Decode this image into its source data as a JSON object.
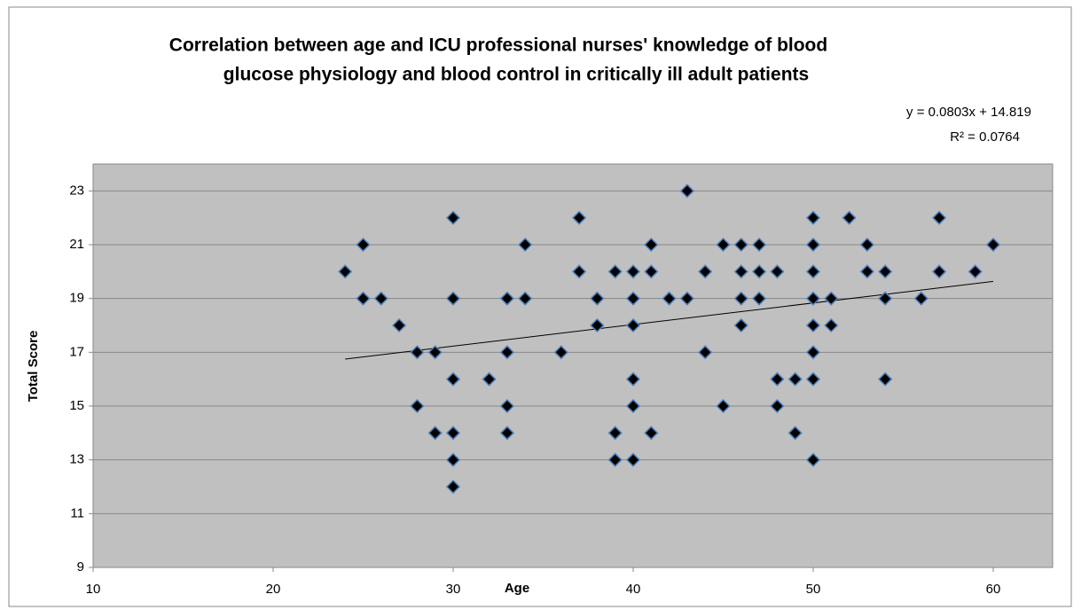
{
  "chart_data": {
    "type": "scatter",
    "title": [
      "Correlation between age and ICU professional nurses' knowledge of blood",
      "glucose  physiology and blood control in critically ill adult patients"
    ],
    "x_label": "Age",
    "y_label": "Total Score",
    "color": "#000000",
    "edge_color": "#4a7ebb",
    "grid": true,
    "xlim": [
      10,
      63.3
    ],
    "ylim": [
      9,
      24
    ],
    "xticks": [
      10,
      20,
      30,
      40,
      50,
      60
    ],
    "yticks": [
      9,
      11,
      13,
      15,
      17,
      19,
      21,
      23
    ],
    "x": [
      24,
      25,
      25,
      26,
      27,
      28,
      28,
      29,
      29,
      30,
      30,
      30,
      30,
      30,
      30,
      32,
      33,
      33,
      33,
      33,
      34,
      34,
      36,
      37,
      37,
      38,
      38,
      39,
      39,
      39,
      40,
      40,
      40,
      40,
      40,
      40,
      41,
      41,
      41,
      42,
      43,
      43,
      44,
      44,
      45,
      45,
      46,
      46,
      46,
      46,
      47,
      47,
      47,
      48,
      48,
      48,
      49,
      49,
      50,
      50,
      50,
      50,
      50,
      50,
      50,
      50,
      51,
      51,
      52,
      53,
      53,
      54,
      54,
      54,
      56,
      57,
      57,
      59,
      60
    ],
    "values": [
      20,
      21,
      19,
      19,
      18,
      17,
      15,
      17,
      14,
      22,
      19,
      16,
      14,
      13,
      12,
      16,
      19,
      17,
      15,
      14,
      21,
      19,
      17,
      22,
      20,
      19,
      18,
      20,
      14,
      13,
      20,
      19,
      18,
      16,
      15,
      13,
      21,
      20,
      14,
      19,
      23,
      19,
      20,
      17,
      21,
      15,
      21,
      20,
      19,
      18,
      21,
      20,
      19,
      20,
      16,
      15,
      16,
      14,
      22,
      21,
      20,
      19,
      18,
      17,
      16,
      13,
      19,
      18,
      22,
      21,
      20,
      20,
      19,
      16,
      19,
      22,
      20,
      20,
      21
    ],
    "trendline": {
      "label": "y = 0.0803x + 14.819",
      "r2_label": "R² = 0.0764",
      "slope": 0.0803,
      "intercept": 14.819,
      "color": "#000000"
    }
  }
}
